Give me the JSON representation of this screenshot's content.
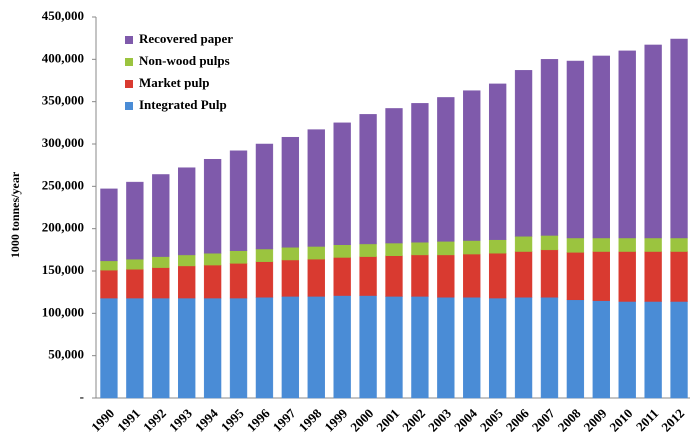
{
  "chart_data": {
    "type": "stacked_bar",
    "y_label": "1000 tonnes/year",
    "categories": [
      "1990",
      "1991",
      "1992",
      "1993",
      "1994",
      "1995",
      "1996",
      "1997",
      "1998",
      "1999",
      "2000",
      "2001",
      "2002",
      "2003",
      "2004",
      "2005",
      "2006",
      "2007",
      "2008",
      "2009",
      "2010",
      "2011",
      "2012"
    ],
    "series": [
      {
        "name": "Integrated Pulp",
        "color": "#4a8cd6",
        "values": [
          118000,
          118000,
          118000,
          118000,
          118000,
          118000,
          119000,
          120000,
          120000,
          121000,
          121000,
          120000,
          120000,
          119000,
          119000,
          118000,
          119000,
          119000,
          116000,
          115000,
          114000,
          114000,
          114000
        ]
      },
      {
        "name": "Market pulp",
        "color": "#d93a30",
        "values": [
          33000,
          34000,
          36000,
          38000,
          39000,
          41000,
          42000,
          43000,
          44000,
          45000,
          46000,
          48000,
          49000,
          50000,
          51000,
          53000,
          54000,
          56000,
          56000,
          58000,
          59000,
          59000,
          59000
        ]
      },
      {
        "name": "Non-wood pulps",
        "color": "#9bc43f",
        "values": [
          11000,
          12000,
          13000,
          13000,
          14000,
          15000,
          15000,
          15000,
          15000,
          15000,
          15000,
          15000,
          15000,
          16000,
          16000,
          16000,
          18000,
          17000,
          17000,
          16000,
          16000,
          16000,
          16000
        ]
      },
      {
        "name": "Recovered paper",
        "color": "#7f5aab",
        "values": [
          85000,
          91000,
          97000,
          103000,
          111000,
          118000,
          124000,
          130000,
          138000,
          144000,
          153000,
          159000,
          164000,
          170000,
          177000,
          184000,
          196000,
          208000,
          209000,
          215000,
          221000,
          228000,
          235000
        ]
      }
    ],
    "ylim": [
      0,
      450000
    ],
    "yticks": [
      {
        "value": 0,
        "label": "-"
      },
      {
        "value": 50000,
        "label": "50,000"
      },
      {
        "value": 100000,
        "label": "100,000"
      },
      {
        "value": 150000,
        "label": "150,000"
      },
      {
        "value": 200000,
        "label": "200,000"
      },
      {
        "value": 250000,
        "label": "250,000"
      },
      {
        "value": 300000,
        "label": "300,000"
      },
      {
        "value": 350000,
        "label": "350,000"
      },
      {
        "value": 400000,
        "label": "400,000"
      },
      {
        "value": 450000,
        "label": "450,000"
      }
    ],
    "legend": "upper left",
    "grid": false
  }
}
